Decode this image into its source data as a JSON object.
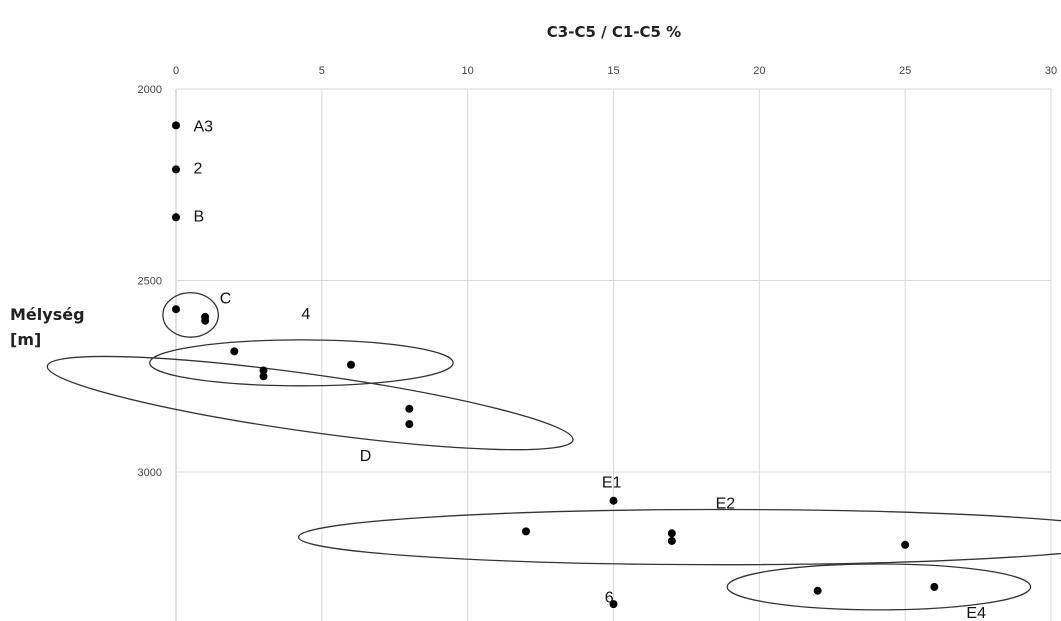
{
  "chart_data": {
    "type": "scatter",
    "title": "C3-C5 / C1-C5 %",
    "ylabel_lines": [
      "Mélység",
      "[m]"
    ],
    "x_axis_position": "top",
    "y_axis_inverted": true,
    "xlim": [
      0,
      30
    ],
    "ylim": [
      2000,
      3350
    ],
    "x_ticks": [
      0,
      5,
      10,
      15,
      20,
      25,
      30
    ],
    "y_ticks": [
      2000,
      2500,
      3000
    ],
    "grid": true,
    "points": [
      {
        "x": 0,
        "y": 2095
      },
      {
        "x": 0,
        "y": 2210
      },
      {
        "x": 0,
        "y": 2335
      },
      {
        "x": 0,
        "y": 2575
      },
      {
        "x": 1,
        "y": 2595
      },
      {
        "x": 1,
        "y": 2605
      },
      {
        "x": 2,
        "y": 2685
      },
      {
        "x": 3,
        "y": 2735
      },
      {
        "x": 3,
        "y": 2750
      },
      {
        "x": 6,
        "y": 2720
      },
      {
        "x": 8,
        "y": 2835
      },
      {
        "x": 8,
        "y": 2875
      },
      {
        "x": 15,
        "y": 3075
      },
      {
        "x": 12,
        "y": 3155
      },
      {
        "x": 17,
        "y": 3160
      },
      {
        "x": 17,
        "y": 3180
      },
      {
        "x": 25,
        "y": 3190
      },
      {
        "x": 22,
        "y": 3310
      },
      {
        "x": 26,
        "y": 3300
      },
      {
        "x": 15,
        "y": 3345
      }
    ],
    "point_labels": [
      {
        "text": "A3",
        "x": 0.6,
        "y": 2095
      },
      {
        "text": "2",
        "x": 0.6,
        "y": 2205
      },
      {
        "text": "B",
        "x": 0.6,
        "y": 2330
      },
      {
        "text": "C",
        "x": 1.5,
        "y": 2545
      },
      {
        "text": "4",
        "x": 4.3,
        "y": 2585
      },
      {
        "text": "D",
        "x": 6.3,
        "y": 2955
      },
      {
        "text": "E1",
        "x": 14.6,
        "y": 3025
      },
      {
        "text": "E2",
        "x": 18.5,
        "y": 3080
      },
      {
        "text": "6",
        "x": 14.7,
        "y": 3325
      },
      {
        "text": "E4",
        "x": 27.1,
        "y": 3365
      }
    ],
    "group_ellipses": [
      {
        "cx": 0.5,
        "cy": 2590,
        "rx": 0.95,
        "ry": 58
      },
      {
        "cx": 4.3,
        "cy": 2715,
        "rx": 5.2,
        "ry": 60
      },
      {
        "cx": 4.6,
        "cy": 2820,
        "rx": 9.1,
        "ry": 75,
        "rotate": 8
      },
      {
        "cx": 18.7,
        "cy": 3170,
        "rx": 14.5,
        "ry": 72
      },
      {
        "cx": 24.1,
        "cy": 3300,
        "rx": 5.2,
        "ry": 60
      }
    ]
  }
}
